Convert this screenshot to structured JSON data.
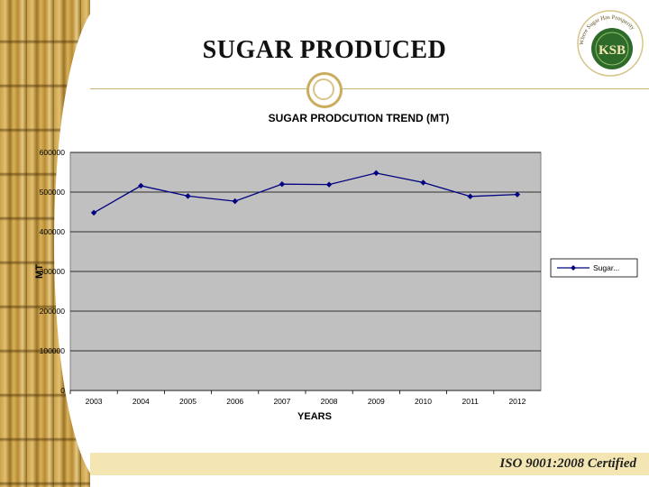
{
  "slide": {
    "title": "SUGAR PRODUCED",
    "footer": "ISO 9001:2008 Certified",
    "logo_text": "KSB",
    "logo_ring_text": "Where Sugar Has Prosperity"
  },
  "colors": {
    "plot_background": "#c0c0c0",
    "series_line": "#000080",
    "gridline": "#000000",
    "footer_band": "#f3e6b3",
    "logo_green": "#2e6b2a",
    "accent_gold": "#c9ad5c"
  },
  "chart_data": {
    "type": "line",
    "title": "SUGAR PRODCUTION TREND (MT)",
    "xlabel": "YEARS",
    "ylabel": "MT",
    "categories": [
      "2003",
      "2004",
      "2005",
      "2006",
      "2007",
      "2008",
      "2009",
      "2010",
      "2011",
      "2012"
    ],
    "series": [
      {
        "name": "Sugar...",
        "values": [
          448000,
          516000,
          490000,
          477000,
          520000,
          519000,
          548000,
          524000,
          489000,
          494000
        ]
      }
    ],
    "ylim": [
      0,
      600000
    ],
    "yticks": [
      "0",
      "100000",
      "200000",
      "300000",
      "400000",
      "500000",
      "600000"
    ],
    "grid": true,
    "legend_position": "right"
  }
}
